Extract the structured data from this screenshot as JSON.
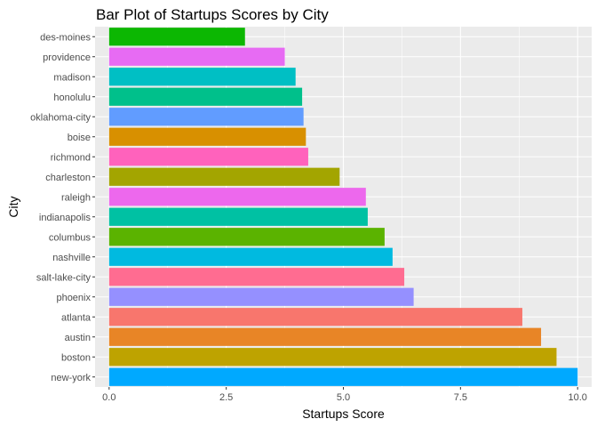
{
  "chart_data": {
    "type": "bar",
    "orientation": "horizontal",
    "title": "Bar Plot of Startups Scores by City",
    "xlabel": "Startups Score",
    "ylabel": "City",
    "xlim": [
      -0.3,
      10.3
    ],
    "x_ticks": [
      0,
      2.5,
      5,
      7.5,
      10
    ],
    "x_tick_labels": [
      "0.0",
      "2.5",
      "5.0",
      "7.5",
      "10.0"
    ],
    "grid": true,
    "legend": "none",
    "categories": [
      "des-moines",
      "providence",
      "madison",
      "honolulu",
      "oklahoma-city",
      "boise",
      "richmond",
      "charleston",
      "raleigh",
      "indianapolis",
      "columbus",
      "nashville",
      "salt-lake-city",
      "phoenix",
      "atlanta",
      "austin",
      "boston",
      "new-york"
    ],
    "values": [
      2.9,
      3.75,
      3.98,
      4.12,
      4.15,
      4.2,
      4.25,
      4.92,
      5.48,
      5.52,
      5.88,
      6.05,
      6.3,
      6.5,
      8.82,
      9.22,
      9.55,
      10.0
    ],
    "colors": [
      "#0CB702",
      "#E76BF3",
      "#00BFC4",
      "#00C08B",
      "#619CFF",
      "#D89000",
      "#FF62BC",
      "#A3A500",
      "#ED68ED",
      "#00C1A3",
      "#5BB300",
      "#00BAE0",
      "#FF6C91",
      "#9590FF",
      "#F8766D",
      "#E88526",
      "#BEA300",
      "#00A9FF"
    ]
  }
}
